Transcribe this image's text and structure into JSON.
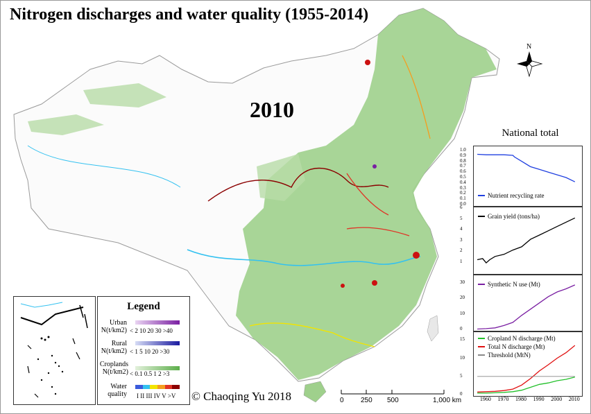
{
  "title": "Nitrogen discharges and water quality (1955-2014)",
  "year": "2010",
  "copyright": "© Chaoqing Yu 2018",
  "north": "N",
  "scale": {
    "ticks": [
      "0",
      "250",
      "500",
      "1,000 km"
    ]
  },
  "legend": {
    "title": "Legend",
    "urban": {
      "label1": "Urban",
      "label2": "N(t/km2)",
      "ticks": "< 2  10  20 30 >40",
      "colors": [
        "#e9d4f2",
        "#7a1fa2"
      ]
    },
    "rural": {
      "label1": "Rural",
      "label2": "N(t/km2)",
      "ticks": "< 1   5  10  20  >30",
      "colors": [
        "#d6dcf5",
        "#1a1aa0"
      ]
    },
    "croplands": {
      "label1": "Croplands",
      "label2": "N(t/km2)",
      "ticks": "< 0.1  0.5  1  2  >3",
      "colors": [
        "#e3f1dc",
        "#5cae4a"
      ]
    },
    "water": {
      "label1": "Water",
      "label2": "quality",
      "ticks": "I  II III IV V >V",
      "colors": [
        "#3b5bdb",
        "#33c1f0",
        "#f2e400",
        "#f59d1e",
        "#e03326",
        "#8b0000"
      ]
    }
  },
  "national": {
    "title": "National total",
    "panels": [
      {
        "name": "recycling",
        "series": [
          {
            "name": "Nutrient recycling rate",
            "color": "#1f3fe0"
          }
        ],
        "yticks": [
          "0.0",
          "0.1",
          "0.2",
          "0.3",
          "0.4",
          "0.5",
          "0.6",
          "0.7",
          "0.8",
          "0.9",
          "1.0"
        ]
      },
      {
        "name": "grain",
        "series": [
          {
            "name": "Grain yield (tons/ha)",
            "color": "#000000"
          }
        ],
        "yticks": [
          "1",
          "2",
          "3",
          "4",
          "5",
          "6"
        ]
      },
      {
        "name": "synthetic",
        "series": [
          {
            "name": "Synthetic N use (Mt)",
            "color": "#7a1fa2"
          }
        ],
        "yticks": [
          "0",
          "10",
          "20",
          "30"
        ]
      },
      {
        "name": "discharge",
        "series": [
          {
            "name": "Cropland N discharge (Mt)",
            "color": "#22c02a"
          },
          {
            "name": "Total N discharge (Mt)",
            "color": "#e01010"
          },
          {
            "name": "Threshold (MtN)",
            "color": "#888888"
          }
        ],
        "yticks": [
          "0",
          "5",
          "10",
          "15"
        ]
      }
    ],
    "xticks": [
      "1960",
      "1970",
      "1980",
      "1990",
      "2000",
      "2010"
    ]
  },
  "chart_data": [
    {
      "type": "line",
      "x": [
        1955,
        1960,
        1965,
        1970,
        1975,
        1976,
        1980,
        1985,
        1990,
        1995,
        2000,
        2005,
        2010
      ],
      "series": [
        {
          "name": "Nutrient recycling rate",
          "values": [
            0.93,
            0.92,
            0.92,
            0.92,
            0.91,
            0.88,
            0.8,
            0.7,
            0.65,
            0.6,
            0.55,
            0.5,
            0.42
          ]
        }
      ],
      "ylim": [
        0,
        1
      ]
    },
    {
      "type": "line",
      "x": [
        1955,
        1958,
        1960,
        1962,
        1965,
        1970,
        1975,
        1980,
        1985,
        1990,
        1995,
        2000,
        2005,
        2010
      ],
      "series": [
        {
          "name": "Grain yield (tons/ha)",
          "values": [
            1.7,
            1.8,
            1.4,
            1.7,
            2.0,
            2.2,
            2.6,
            2.9,
            3.6,
            4.0,
            4.4,
            4.8,
            5.2,
            5.6
          ]
        }
      ],
      "ylim": [
        0.5,
        6.2
      ]
    },
    {
      "type": "line",
      "x": [
        1955,
        1960,
        1965,
        1970,
        1975,
        1980,
        1985,
        1990,
        1995,
        2000,
        2005,
        2010
      ],
      "series": [
        {
          "name": "Synthetic N use (Mt)",
          "values": [
            0.2,
            0.5,
            1.0,
            2.5,
            4.5,
            9,
            13,
            17,
            21,
            24,
            26,
            28.5
          ]
        }
      ],
      "ylim": [
        0,
        32
      ]
    },
    {
      "type": "line",
      "x": [
        1955,
        1960,
        1965,
        1970,
        1975,
        1980,
        1985,
        1990,
        1995,
        2000,
        2005,
        2010
      ],
      "series": [
        {
          "name": "Cropland N discharge (Mt)",
          "values": [
            0.4,
            0.4,
            0.5,
            0.6,
            0.8,
            1.2,
            2.0,
            2.8,
            3.2,
            3.8,
            4.2,
            4.8
          ]
        },
        {
          "name": "Total N discharge (Mt)",
          "values": [
            0.7,
            0.8,
            0.9,
            1.1,
            1.5,
            2.6,
            4.4,
            6.5,
            8.2,
            10.0,
            11.5,
            13.5
          ]
        },
        {
          "name": "Threshold (MtN)",
          "values": [
            5.0,
            5.0,
            5.0,
            5.0,
            5.0,
            5.0,
            5.0,
            5.0,
            5.0,
            5.0,
            5.0,
            5.0
          ]
        }
      ],
      "ylim": [
        0,
        16
      ]
    }
  ]
}
